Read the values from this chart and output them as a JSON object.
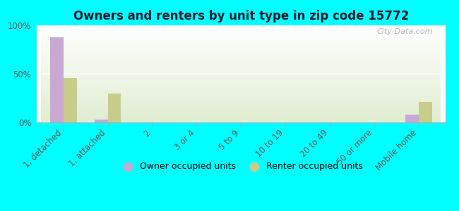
{
  "title": "Owners and renters by unit type in zip code 15772",
  "categories": [
    "1, detached",
    "1, attached",
    "2",
    "3 or 4",
    "5 to 9",
    "10 to 19",
    "20 to 49",
    "50 or more",
    "Mobile home"
  ],
  "owner_values": [
    88,
    3,
    0,
    0,
    0,
    0,
    0,
    0,
    8
  ],
  "renter_values": [
    46,
    30,
    0,
    0,
    0,
    0,
    0,
    0,
    21
  ],
  "owner_color": "#c9a8d4",
  "renter_color": "#c8cd8a",
  "background_color": "#00ffff",
  "ylim": [
    0,
    100
  ],
  "yticks": [
    0,
    50,
    100
  ],
  "ytick_labels": [
    "0%",
    "50%",
    "100%"
  ],
  "bar_width": 0.3,
  "legend_owner": "Owner occupied units",
  "legend_renter": "Renter occupied units",
  "watermark": "City-Data.com",
  "title_color": "#1a1a2e",
  "tick_label_color": "#555555"
}
